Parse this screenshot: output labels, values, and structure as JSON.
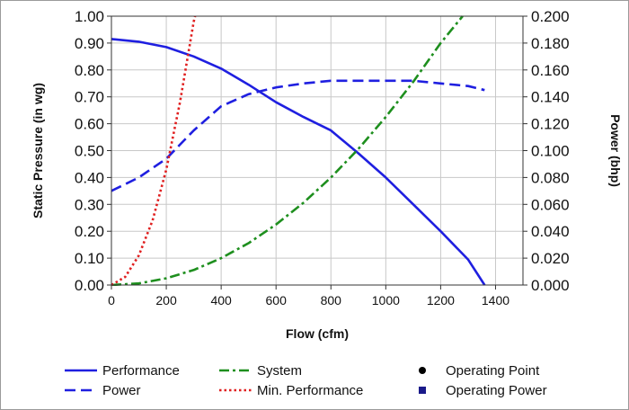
{
  "chart_data": {
    "type": "line",
    "xlabel": "Flow (cfm)",
    "ylabel_left": "Static Pressure (in wg)",
    "ylabel_right": "Power (bhp)",
    "xlim": [
      0,
      1500
    ],
    "ylim_left": [
      0,
      1.0
    ],
    "ylim_right": [
      0,
      0.2
    ],
    "x_ticks": [
      "0",
      "200",
      "400",
      "600",
      "800",
      "1000",
      "1200",
      "1400"
    ],
    "y_left_ticks": [
      "0.00",
      "0.10",
      "0.20",
      "0.30",
      "0.40",
      "0.50",
      "0.60",
      "0.70",
      "0.80",
      "0.90",
      "1.00"
    ],
    "y_right_ticks": [
      "0.000",
      "0.020",
      "0.040",
      "0.060",
      "0.080",
      "0.100",
      "0.120",
      "0.140",
      "0.160",
      "0.180",
      "0.200"
    ],
    "grid": true,
    "legend_position": "bottom",
    "series": [
      {
        "name": "Performance",
        "axis": "left",
        "color": "#1f1fe0",
        "style": "solid",
        "points": [
          [
            0,
            0.915
          ],
          [
            100,
            0.905
          ],
          [
            200,
            0.885
          ],
          [
            300,
            0.85
          ],
          [
            400,
            0.805
          ],
          [
            500,
            0.745
          ],
          [
            600,
            0.68
          ],
          [
            700,
            0.625
          ],
          [
            800,
            0.575
          ],
          [
            900,
            0.49
          ],
          [
            1000,
            0.4
          ],
          [
            1100,
            0.3
          ],
          [
            1200,
            0.2
          ],
          [
            1300,
            0.095
          ],
          [
            1360,
            0.0
          ]
        ]
      },
      {
        "name": "Power",
        "axis": "right",
        "color": "#1f1fe0",
        "style": "dashed",
        "points": [
          [
            0,
            0.07
          ],
          [
            100,
            0.08
          ],
          [
            200,
            0.094
          ],
          [
            300,
            0.115
          ],
          [
            400,
            0.133
          ],
          [
            500,
            0.142
          ],
          [
            600,
            0.147
          ],
          [
            700,
            0.15
          ],
          [
            800,
            0.152
          ],
          [
            1000,
            0.152
          ],
          [
            1100,
            0.152
          ],
          [
            1200,
            0.15
          ],
          [
            1300,
            0.148
          ],
          [
            1360,
            0.145
          ]
        ]
      },
      {
        "name": "System",
        "axis": "left",
        "color": "#1e8f1e",
        "style": "dashdot",
        "points": [
          [
            0,
            0.0
          ],
          [
            100,
            0.006
          ],
          [
            200,
            0.025
          ],
          [
            300,
            0.056
          ],
          [
            400,
            0.1
          ],
          [
            500,
            0.156
          ],
          [
            600,
            0.225
          ],
          [
            700,
            0.306
          ],
          [
            800,
            0.4
          ],
          [
            900,
            0.506
          ],
          [
            1000,
            0.625
          ],
          [
            1100,
            0.756
          ],
          [
            1200,
            0.9
          ],
          [
            1280,
            1.0
          ]
        ]
      },
      {
        "name": "Min. Performance",
        "axis": "left",
        "color": "#e01f1f",
        "style": "dotted",
        "points": [
          [
            0,
            0.0
          ],
          [
            50,
            0.03
          ],
          [
            100,
            0.11
          ],
          [
            150,
            0.24
          ],
          [
            200,
            0.43
          ],
          [
            250,
            0.68
          ],
          [
            300,
            0.98
          ],
          [
            305,
            1.0
          ]
        ]
      }
    ],
    "markers": [
      {
        "name": "Operating Point",
        "shape": "circle",
        "color": "#000000"
      },
      {
        "name": "Operating Power",
        "shape": "square",
        "color": "#1a1a8a"
      }
    ]
  }
}
